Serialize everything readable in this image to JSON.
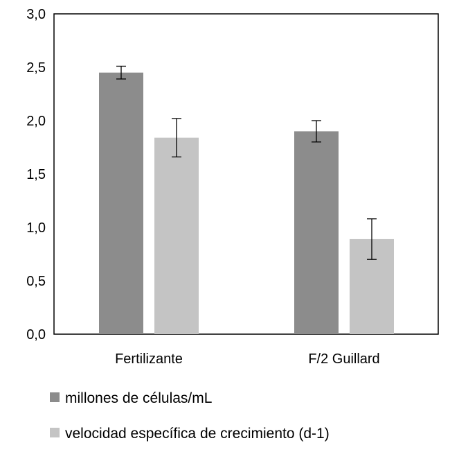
{
  "chart_data": {
    "type": "bar",
    "title": "",
    "xlabel": "",
    "ylabel": "",
    "categories": [
      "Fertilizante",
      "F/2 Guillard"
    ],
    "series": [
      {
        "name": "millones de células/mL",
        "values": [
          2.45,
          1.9
        ],
        "errors": [
          0.06,
          0.1
        ],
        "color": "#8c8c8c"
      },
      {
        "name": "velocidad específica de crecimiento (d-1)",
        "values": [
          1.84,
          0.89
        ],
        "errors": [
          0.18,
          0.19
        ],
        "color": "#c4c4c4"
      }
    ],
    "ylim": [
      0,
      3.0
    ],
    "yticks": [
      "0,0",
      "0,5",
      "1,0",
      "1,5",
      "2,0",
      "2,5",
      "3,0"
    ],
    "ytick_values": [
      0,
      0.5,
      1.0,
      1.5,
      2.0,
      2.5,
      3.0
    ],
    "grid": false,
    "legend_position": "bottom-left"
  }
}
